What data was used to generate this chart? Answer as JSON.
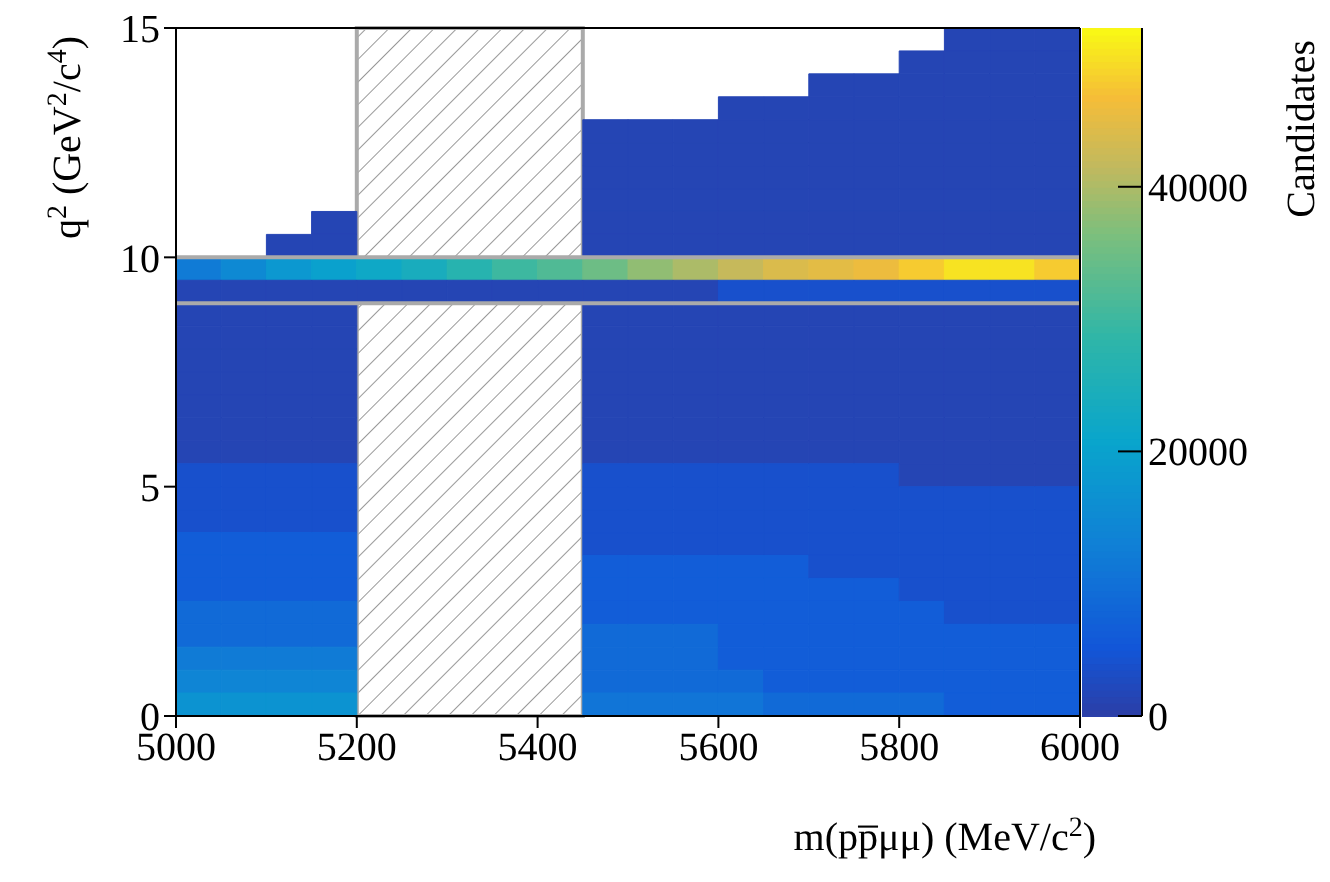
{
  "chart_data": {
    "type": "heatmap",
    "xlabel": "m(pp̅μμ) (MeV/c$^{2}$)",
    "ylabel": "q$^{2}$ (GeV$^{2}$/c$^{4}$)",
    "clabel": "Candidates",
    "x": [
      5025,
      5075,
      5125,
      5175,
      5225,
      5275,
      5325,
      5375,
      5425,
      5475,
      5525,
      5575,
      5625,
      5675,
      5725,
      5775,
      5825,
      5875,
      5925,
      5975
    ],
    "y": [
      14.75,
      14.25,
      13.75,
      13.25,
      12.75,
      12.25,
      11.75,
      11.25,
      10.75,
      10.25,
      9.75,
      9.25,
      8.75,
      8.25,
      7.75,
      7.25,
      6.75,
      6.25,
      5.75,
      5.25,
      4.75,
      4.25,
      3.75,
      3.25,
      2.75,
      2.25,
      1.75,
      1.25,
      0.75,
      0.25
    ],
    "xlim": [
      5000,
      6000
    ],
    "xticks": [
      5000,
      5200,
      5400,
      5600,
      5800,
      6000
    ],
    "ylim": [
      0,
      15
    ],
    "yticks": [
      0,
      5,
      10,
      15
    ],
    "clim": [
      0,
      52000
    ],
    "cticks": [
      0,
      20000,
      40000
    ],
    "bands": [
      {
        "axis": "x",
        "from": 5200,
        "to": 5450,
        "color": "#aaaaaa"
      }
    ],
    "ref_lines": [
      {
        "axis": "y",
        "value": 9,
        "color": "#aaaaaa"
      },
      {
        "axis": "y",
        "value": 10,
        "color": "#aaaaaa"
      }
    ],
    "cells": [
      [
        null,
        null,
        null,
        null,
        null,
        null,
        null,
        null,
        null,
        null,
        null,
        null,
        null,
        null,
        null,
        null,
        null,
        1500,
        1500,
        1500
      ],
      [
        null,
        null,
        null,
        null,
        null,
        null,
        null,
        null,
        null,
        null,
        null,
        null,
        null,
        null,
        null,
        null,
        1500,
        1500,
        1500,
        1500
      ],
      [
        null,
        null,
        null,
        null,
        null,
        null,
        null,
        null,
        null,
        null,
        null,
        null,
        null,
        null,
        1500,
        1500,
        1500,
        1500,
        1500,
        1500
      ],
      [
        null,
        null,
        null,
        null,
        null,
        null,
        null,
        null,
        null,
        null,
        null,
        null,
        1500,
        1500,
        1500,
        1500,
        1500,
        1500,
        1500,
        1500
      ],
      [
        null,
        null,
        null,
        null,
        null,
        null,
        null,
        null,
        null,
        1500,
        1500,
        1500,
        1500,
        1500,
        1500,
        1500,
        1500,
        1500,
        1500,
        1500
      ],
      [
        null,
        null,
        null,
        null,
        null,
        null,
        null,
        null,
        null,
        1500,
        1500,
        1500,
        1500,
        1500,
        1500,
        1500,
        1500,
        1500,
        1500,
        1500
      ],
      [
        null,
        null,
        null,
        null,
        null,
        null,
        null,
        null,
        null,
        1500,
        1500,
        1500,
        1500,
        1500,
        1500,
        1500,
        1500,
        1500,
        1500,
        1500
      ],
      [
        null,
        null,
        null,
        null,
        null,
        null,
        null,
        null,
        null,
        1500,
        1500,
        1500,
        1500,
        1500,
        1500,
        1500,
        1500,
        1500,
        1500,
        1500
      ],
      [
        null,
        null,
        null,
        1500,
        null,
        null,
        null,
        null,
        null,
        1500,
        1500,
        1500,
        1500,
        1500,
        1500,
        1500,
        1500,
        1500,
        1500,
        1500
      ],
      [
        null,
        null,
        1500,
        1500,
        null,
        null,
        null,
        null,
        null,
        1500,
        1500,
        1500,
        1500,
        1500,
        1500,
        1500,
        1500,
        1500,
        1500,
        1500
      ],
      [
        12000,
        15000,
        18000,
        20000,
        22000,
        24000,
        27000,
        30000,
        32000,
        35000,
        38000,
        40000,
        42000,
        44000,
        45000,
        46000,
        48000,
        50000,
        50000,
        48000
      ],
      [
        1500,
        1500,
        1500,
        1500,
        1500,
        1500,
        1500,
        1500,
        1500,
        1500,
        1500,
        1500,
        4000,
        4000,
        4000,
        4000,
        4000,
        4000,
        4000,
        4000
      ],
      [
        1500,
        1500,
        1500,
        1500,
        null,
        null,
        null,
        null,
        null,
        1500,
        1500,
        1500,
        1500,
        1500,
        1500,
        1500,
        1500,
        1500,
        1500,
        1500
      ],
      [
        1500,
        1500,
        1500,
        1500,
        null,
        null,
        null,
        null,
        null,
        1500,
        1500,
        1500,
        1500,
        1500,
        1500,
        1500,
        1500,
        1500,
        1500,
        1500
      ],
      [
        1500,
        1500,
        1500,
        1500,
        null,
        null,
        null,
        null,
        null,
        1500,
        1500,
        1500,
        1500,
        1500,
        1500,
        1500,
        1500,
        1500,
        1500,
        1500
      ],
      [
        1500,
        1500,
        1500,
        1500,
        null,
        null,
        null,
        null,
        null,
        1500,
        1500,
        1500,
        1500,
        1500,
        1500,
        1500,
        1500,
        1500,
        1500,
        1500
      ],
      [
        1500,
        1500,
        1500,
        1500,
        null,
        null,
        null,
        null,
        null,
        1500,
        1500,
        1500,
        1500,
        1500,
        1500,
        1500,
        1500,
        1500,
        1500,
        1500
      ],
      [
        1500,
        1500,
        1500,
        1500,
        null,
        null,
        null,
        null,
        null,
        1500,
        1500,
        1500,
        1500,
        1500,
        1500,
        1500,
        1500,
        1500,
        1500,
        1500
      ],
      [
        1500,
        1500,
        1500,
        1500,
        null,
        null,
        null,
        null,
        null,
        1500,
        1500,
        1500,
        1500,
        1500,
        1500,
        1500,
        1500,
        1500,
        1500,
        1500
      ],
      [
        4000,
        4000,
        4000,
        4000,
        null,
        null,
        null,
        null,
        null,
        4000,
        4000,
        4000,
        4000,
        4000,
        4000,
        4000,
        1500,
        1500,
        1500,
        1500
      ],
      [
        4000,
        4000,
        4000,
        4000,
        null,
        null,
        null,
        null,
        null,
        4000,
        4000,
        4000,
        4000,
        4000,
        4000,
        4000,
        4000,
        4000,
        4000,
        4000
      ],
      [
        4000,
        4000,
        4000,
        4000,
        null,
        null,
        null,
        null,
        null,
        4000,
        4000,
        4000,
        4000,
        4000,
        4000,
        4000,
        4000,
        4000,
        4000,
        4000
      ],
      [
        6500,
        6500,
        6500,
        6500,
        null,
        null,
        null,
        null,
        null,
        4000,
        4000,
        4000,
        4000,
        4000,
        4000,
        4000,
        4000,
        4000,
        4000,
        4000
      ],
      [
        6500,
        6500,
        6500,
        6500,
        null,
        null,
        null,
        null,
        null,
        6500,
        6500,
        6500,
        6500,
        6500,
        4000,
        4000,
        4000,
        4000,
        4000,
        4000
      ],
      [
        6500,
        6500,
        6500,
        6500,
        null,
        null,
        null,
        null,
        null,
        6500,
        6500,
        6500,
        6500,
        6500,
        6500,
        6500,
        4000,
        4000,
        4000,
        4000
      ],
      [
        9000,
        9000,
        9000,
        9000,
        null,
        null,
        null,
        null,
        null,
        6500,
        6500,
        6500,
        6500,
        6500,
        6500,
        6500,
        6500,
        4000,
        4000,
        4000
      ],
      [
        9000,
        9000,
        9000,
        9000,
        null,
        null,
        null,
        null,
        null,
        9000,
        9000,
        9000,
        6500,
        6500,
        6500,
        6500,
        6500,
        6500,
        6500,
        6500
      ],
      [
        12000,
        12000,
        12000,
        12000,
        null,
        null,
        null,
        null,
        null,
        9000,
        9000,
        9000,
        6500,
        6500,
        6500,
        6500,
        6500,
        6500,
        6500,
        6500
      ],
      [
        14000,
        14000,
        14000,
        14000,
        null,
        null,
        null,
        null,
        null,
        9000,
        9000,
        9000,
        9000,
        6500,
        6500,
        6500,
        6500,
        6500,
        6500,
        6500
      ],
      [
        17000,
        17000,
        17000,
        17000,
        null,
        null,
        null,
        null,
        null,
        11000,
        11000,
        11000,
        11000,
        9000,
        9000,
        9000,
        9000,
        6500,
        6500,
        6500
      ]
    ]
  }
}
